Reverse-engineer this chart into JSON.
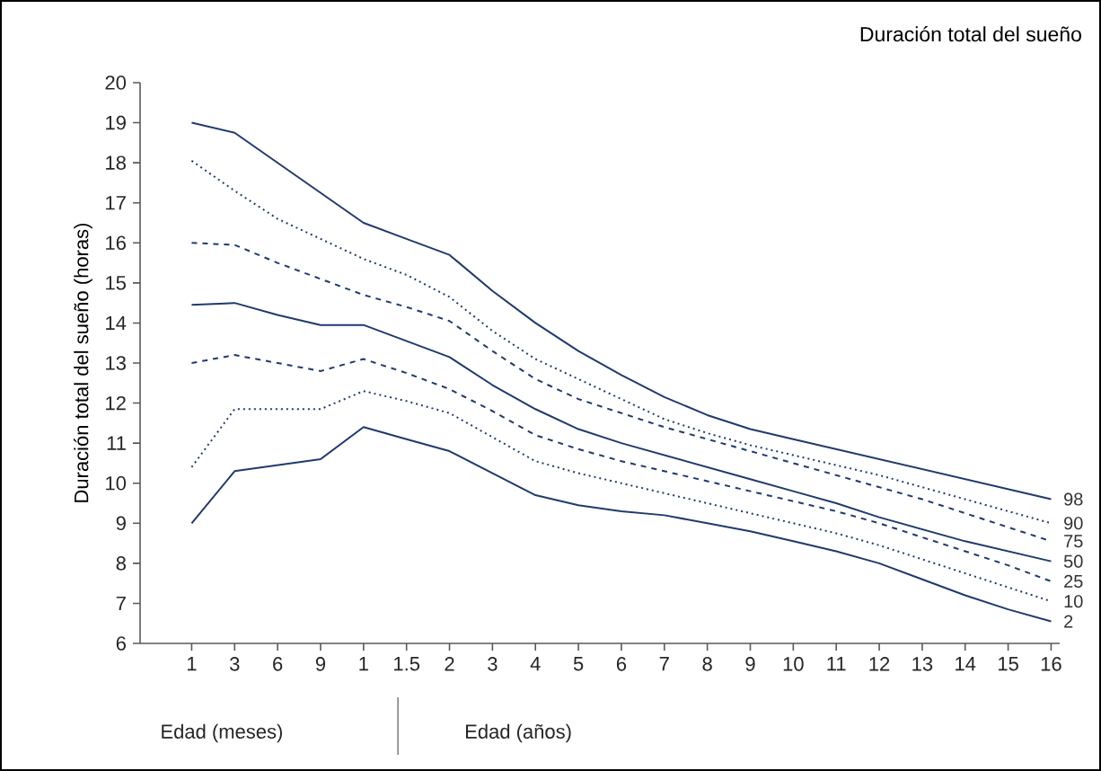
{
  "chart_data": {
    "type": "line",
    "title": "Duración total del sueño",
    "ylabel": "Duración total del sueño (horas)",
    "annotations": [
      "Edad (meses)",
      "Edad (años)"
    ],
    "categories": [
      "1",
      "3",
      "6",
      "9",
      "1",
      "1.5",
      "2",
      "3",
      "4",
      "5",
      "6",
      "7",
      "8",
      "9",
      "10",
      "11",
      "12",
      "13",
      "14",
      "15",
      "16"
    ],
    "ylim": [
      6,
      20
    ],
    "yticks": [
      6,
      7,
      8,
      9,
      10,
      11,
      12,
      13,
      14,
      15,
      16,
      17,
      18,
      19,
      20
    ],
    "marker": "none",
    "legend": false,
    "series": [
      {
        "name": "98",
        "color": "#1f3a6e",
        "line_style": "solid",
        "values": [
          19.0,
          18.75,
          18.0,
          17.25,
          16.5,
          16.1,
          15.7,
          14.8,
          14.0,
          13.3,
          12.7,
          12.15,
          11.7,
          11.35,
          11.1,
          10.85,
          10.6,
          10.35,
          10.1,
          9.85,
          9.6
        ]
      },
      {
        "name": "90",
        "color": "#1f3a6e",
        "line_style": "dotted",
        "values": [
          18.05,
          17.3,
          16.6,
          16.1,
          15.6,
          15.2,
          14.65,
          13.8,
          13.1,
          12.6,
          12.1,
          11.6,
          11.25,
          10.95,
          10.7,
          10.45,
          10.2,
          9.9,
          9.6,
          9.3,
          9.0
        ]
      },
      {
        "name": "75",
        "color": "#1f3a6e",
        "line_style": "dashed",
        "values": [
          16.0,
          15.95,
          15.5,
          15.1,
          14.7,
          14.4,
          14.05,
          13.3,
          12.6,
          12.1,
          11.75,
          11.4,
          11.1,
          10.8,
          10.5,
          10.2,
          9.9,
          9.6,
          9.25,
          8.9,
          8.55
        ]
      },
      {
        "name": "50",
        "color": "#1f3a6e",
        "line_style": "solid",
        "values": [
          14.45,
          14.5,
          14.2,
          13.95,
          13.95,
          13.55,
          13.15,
          12.45,
          11.85,
          11.35,
          11.0,
          10.7,
          10.4,
          10.1,
          9.8,
          9.5,
          9.15,
          8.85,
          8.55,
          8.3,
          8.05
        ]
      },
      {
        "name": "25",
        "color": "#1f3a6e",
        "line_style": "dashed",
        "values": [
          13.0,
          13.2,
          13.0,
          12.8,
          13.1,
          12.75,
          12.35,
          11.8,
          11.2,
          10.85,
          10.55,
          10.3,
          10.05,
          9.8,
          9.55,
          9.3,
          9.0,
          8.65,
          8.3,
          7.95,
          7.55
        ]
      },
      {
        "name": "10",
        "color": "#1f3a6e",
        "line_style": "dotted",
        "values": [
          10.4,
          11.85,
          11.85,
          11.85,
          12.3,
          12.05,
          11.75,
          11.15,
          10.55,
          10.25,
          10.0,
          9.75,
          9.5,
          9.25,
          9.0,
          8.75,
          8.45,
          8.1,
          7.75,
          7.4,
          7.05
        ]
      },
      {
        "name": "2",
        "color": "#1f3a6e",
        "line_style": "solid",
        "values": [
          9.0,
          10.3,
          10.45,
          10.6,
          11.4,
          11.1,
          10.8,
          10.25,
          9.7,
          9.45,
          9.3,
          9.2,
          9.0,
          8.8,
          8.55,
          8.3,
          8.0,
          7.6,
          7.2,
          6.85,
          6.55
        ]
      }
    ]
  }
}
